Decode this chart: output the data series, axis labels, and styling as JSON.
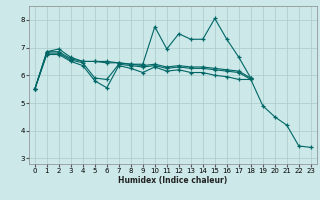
{
  "xlabel": "Humidex (Indice chaleur)",
  "bg_color": "#cce8e8",
  "grid_color": "#aacccc",
  "line_color": "#006666",
  "xlim": [
    -0.5,
    23.5
  ],
  "ylim": [
    2.8,
    8.5
  ],
  "xticks": [
    0,
    1,
    2,
    3,
    4,
    5,
    6,
    7,
    8,
    9,
    10,
    11,
    12,
    13,
    14,
    15,
    16,
    17,
    18,
    19,
    20,
    21,
    22,
    23
  ],
  "yticks": [
    3,
    4,
    5,
    6,
    7,
    8
  ],
  "series": [
    {
      "x": [
        0,
        1,
        2,
        3,
        4,
        5,
        6,
        7,
        8,
        9,
        10,
        11,
        12,
        13,
        14,
        15,
        16,
        17,
        18
      ],
      "y": [
        5.5,
        6.85,
        6.95,
        6.65,
        6.5,
        6.5,
        6.5,
        6.45,
        6.4,
        6.4,
        7.75,
        6.95,
        7.5,
        7.3,
        7.3,
        8.05,
        7.3,
        6.65,
        5.9
      ]
    },
    {
      "x": [
        0,
        1,
        2,
        3,
        4,
        5,
        6,
        7,
        8,
        9,
        10,
        11,
        12,
        13,
        14,
        15,
        16,
        17,
        18
      ],
      "y": [
        5.5,
        6.85,
        6.85,
        6.6,
        6.5,
        6.5,
        6.45,
        6.45,
        6.4,
        6.35,
        6.4,
        6.3,
        6.35,
        6.3,
        6.3,
        6.25,
        6.2,
        6.15,
        5.9
      ]
    },
    {
      "x": [
        0,
        1,
        2,
        3,
        4,
        5,
        6,
        7,
        8,
        9,
        10,
        11,
        12,
        13,
        14,
        15,
        16,
        17,
        18
      ],
      "y": [
        5.5,
        6.8,
        6.8,
        6.55,
        6.45,
        5.9,
        5.85,
        6.4,
        6.35,
        6.3,
        6.35,
        6.25,
        6.3,
        6.25,
        6.25,
        6.2,
        6.15,
        6.1,
        5.85
      ]
    },
    {
      "x": [
        0,
        1,
        2,
        3,
        4,
        5,
        6,
        7,
        8,
        9,
        10,
        11,
        12,
        13,
        14,
        15,
        16,
        17,
        18,
        19,
        20,
        21,
        22,
        23
      ],
      "y": [
        5.5,
        6.75,
        6.75,
        6.5,
        6.35,
        5.8,
        5.55,
        6.35,
        6.25,
        6.1,
        6.3,
        6.15,
        6.2,
        6.1,
        6.1,
        6.0,
        5.95,
        5.85,
        5.85,
        4.9,
        4.5,
        4.2,
        3.45,
        3.4
      ]
    }
  ]
}
